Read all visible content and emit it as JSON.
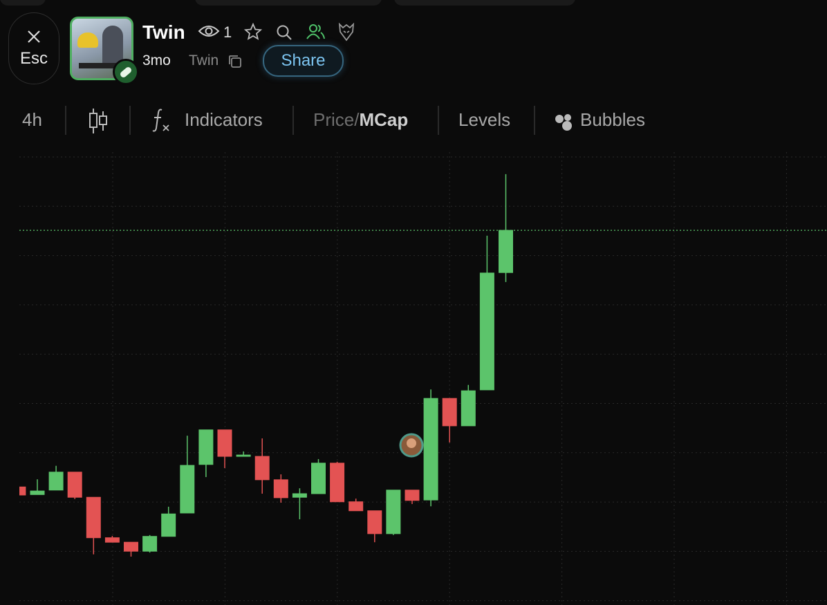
{
  "header": {
    "close_label": "Esc",
    "token_name": "Twin",
    "viewers": "1",
    "age": "3mo",
    "ticker": "Twin",
    "share": "Share"
  },
  "toolbar": {
    "interval": "4h",
    "indicators": "Indicators",
    "price": "Price",
    "slash": "/",
    "mcap": "MCap",
    "levels": "Levels",
    "bubbles": "Bubbles"
  },
  "chart_data": {
    "type": "candlestick",
    "categories": [
      null,
      null,
      null,
      null,
      null,
      null,
      null,
      null,
      null,
      null,
      null,
      null,
      null,
      null,
      null,
      null,
      null,
      null,
      null,
      null,
      null,
      null,
      null,
      null,
      null,
      null,
      null
    ],
    "open": [
      25.5,
      23.8,
      24.8,
      28.8,
      23.2,
      14.2,
      13.2,
      11.2,
      14.5,
      19.7,
      30.5,
      38.2,
      32.3,
      32.3,
      27.1,
      23.2,
      24.0,
      30.8,
      22.2,
      20.2,
      15.1,
      24.8,
      22.6,
      45.2,
      39.1,
      47.1,
      73.2
    ],
    "high": [
      25.5,
      27.2,
      30.2,
      28.8,
      23.2,
      14.6,
      13.2,
      14.8,
      21.1,
      36.9,
      38.2,
      38.2,
      33.4,
      36.3,
      28.3,
      25.2,
      31.7,
      31.1,
      22.9,
      20.2,
      24.8,
      24.8,
      47.2,
      45.2,
      48.2,
      81.4,
      95.1
    ],
    "low": [
      23.7,
      23.8,
      24.8,
      22.8,
      10.5,
      13.2,
      10.0,
      10.9,
      14.5,
      19.7,
      27.7,
      29.7,
      32.3,
      24.0,
      22.0,
      18.3,
      24.0,
      22.2,
      20.2,
      13.2,
      14.8,
      21.7,
      21.2,
      35.4,
      39.1,
      47.1,
      71.1
    ],
    "close": [
      23.7,
      24.6,
      28.8,
      23.2,
      14.2,
      13.2,
      11.2,
      14.5,
      19.5,
      30.3,
      38.2,
      32.3,
      32.6,
      27.1,
      23.1,
      24.0,
      30.8,
      22.2,
      20.2,
      15.1,
      24.8,
      22.5,
      45.2,
      39.1,
      46.9,
      73.1,
      82.6
    ],
    "up_color": "#5cc46b",
    "down_color": "#e35353",
    "ylim": [
      0,
      100
    ],
    "grid": true
  }
}
